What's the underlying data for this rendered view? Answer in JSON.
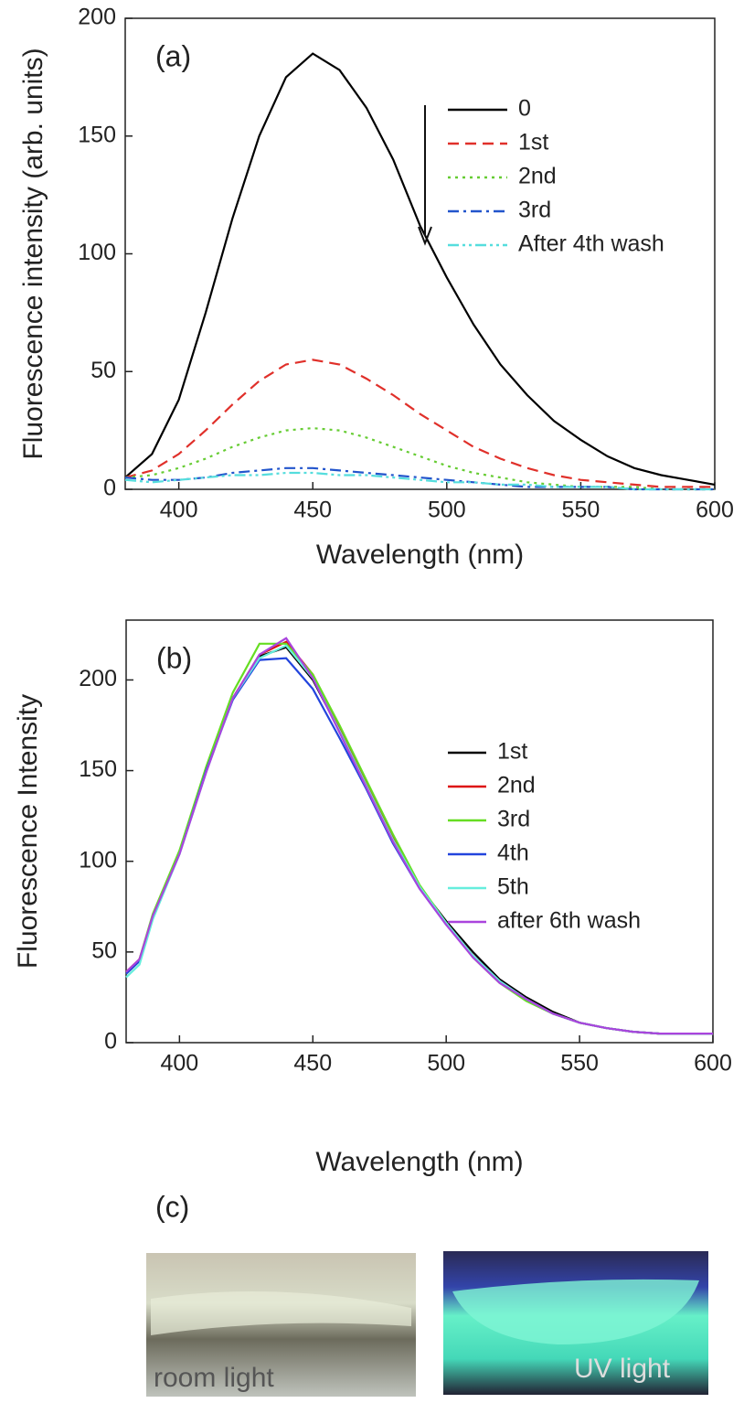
{
  "chart_data": [
    {
      "type": "line",
      "panel_label": "(a)",
      "xlabel": "Wavelength (nm)",
      "ylabel": "Fluorescence intensity (arb. units)",
      "x": [
        380,
        390,
        400,
        410,
        420,
        430,
        440,
        450,
        460,
        470,
        480,
        490,
        500,
        510,
        520,
        530,
        540,
        550,
        560,
        570,
        580,
        590,
        600
      ],
      "series": [
        {
          "name": "0",
          "color": "#000000",
          "style": "solid",
          "values": [
            5,
            15,
            38,
            75,
            115,
            150,
            175,
            185,
            178,
            162,
            140,
            112,
            90,
            70,
            53,
            40,
            29,
            21,
            14,
            9,
            6,
            4,
            2
          ]
        },
        {
          "name": "1st",
          "color": "#e0302a",
          "style": "dashed",
          "values": [
            5,
            8,
            15,
            25,
            36,
            46,
            53,
            55,
            53,
            47,
            40,
            32,
            25,
            18,
            13,
            9,
            6,
            4,
            3,
            2,
            1,
            1,
            1
          ]
        },
        {
          "name": "2nd",
          "color": "#66cc33",
          "style": "dotted",
          "values": [
            5,
            6,
            9,
            13,
            18,
            22,
            25,
            26,
            25,
            22,
            18,
            14,
            10,
            7,
            5,
            3,
            2,
            1,
            1,
            1,
            0,
            0,
            0
          ]
        },
        {
          "name": "3rd",
          "color": "#2255cc",
          "style": "dashdot",
          "values": [
            5,
            4,
            4,
            5,
            7,
            8,
            9,
            9,
            8,
            7,
            6,
            5,
            4,
            3,
            2,
            1,
            1,
            1,
            1,
            0,
            0,
            0,
            0
          ]
        },
        {
          "name": "After 4th wash",
          "color": "#55dddd",
          "style": "dashdotdot",
          "values": [
            4,
            3,
            4,
            5,
            6,
            6,
            7,
            7,
            6,
            6,
            5,
            4,
            3,
            3,
            2,
            2,
            1,
            1,
            1,
            0,
            0,
            0,
            0
          ]
        }
      ],
      "xlim": [
        380,
        600
      ],
      "ylim": [
        0,
        200
      ],
      "xticks": [
        400,
        450,
        500,
        550,
        600
      ],
      "yticks": [
        0,
        50,
        100,
        150,
        200
      ],
      "legend": "upper right"
    },
    {
      "type": "line",
      "panel_label": "(b)",
      "xlabel": "Wavelength (nm)",
      "ylabel": "Fluorescence Intensity",
      "x": [
        380,
        385,
        390,
        400,
        410,
        420,
        430,
        440,
        450,
        460,
        470,
        480,
        490,
        500,
        510,
        520,
        530,
        540,
        550,
        560,
        570,
        580,
        590,
        600
      ],
      "series": [
        {
          "name": "1st",
          "color": "#000000",
          "style": "solid",
          "values": [
            38,
            45,
            70,
            105,
            150,
            190,
            213,
            218,
            200,
            172,
            142,
            112,
            86,
            67,
            50,
            35,
            25,
            17,
            11,
            8,
            6,
            5,
            5,
            5
          ]
        },
        {
          "name": "2nd",
          "color": "#dd1111",
          "style": "solid",
          "values": [
            39,
            46,
            70,
            105,
            150,
            190,
            214,
            221,
            203,
            173,
            143,
            113,
            86,
            66,
            48,
            34,
            24,
            16,
            11,
            8,
            6,
            5,
            5,
            5
          ]
        },
        {
          "name": "3rd",
          "color": "#66dd22",
          "style": "solid",
          "values": [
            38,
            46,
            71,
            106,
            152,
            193,
            220,
            220,
            203,
            175,
            145,
            115,
            87,
            66,
            47,
            33,
            23,
            16,
            11,
            8,
            6,
            5,
            5,
            5
          ]
        },
        {
          "name": "4th",
          "color": "#2244dd",
          "style": "solid",
          "values": [
            38,
            45,
            69,
            104,
            150,
            189,
            211,
            212,
            195,
            168,
            140,
            110,
            85,
            65,
            48,
            34,
            24,
            16,
            11,
            8,
            6,
            5,
            5,
            5
          ]
        },
        {
          "name": "5th",
          "color": "#66eedd",
          "style": "solid",
          "values": [
            36,
            43,
            68,
            104,
            149,
            190,
            212,
            219,
            201,
            172,
            142,
            112,
            86,
            66,
            48,
            34,
            24,
            16,
            11,
            8,
            6,
            5,
            5,
            5
          ]
        },
        {
          "name": "after 6th wash",
          "color": "#aa44dd",
          "style": "solid",
          "values": [
            39,
            46,
            70,
            104,
            149,
            190,
            214,
            223,
            201,
            171,
            141,
            111,
            85,
            65,
            47,
            33,
            24,
            16,
            11,
            8,
            6,
            5,
            5,
            5
          ]
        }
      ],
      "xlim": [
        380,
        600
      ],
      "ylim": [
        0,
        233
      ],
      "xticks": [
        400,
        450,
        500,
        550,
        600
      ],
      "yticks": [
        0,
        50,
        100,
        150,
        200
      ],
      "legend": "upper right"
    }
  ],
  "photos": {
    "panel_label": "(c)",
    "images": [
      {
        "caption": "room light"
      },
      {
        "caption": "UV light"
      }
    ]
  }
}
